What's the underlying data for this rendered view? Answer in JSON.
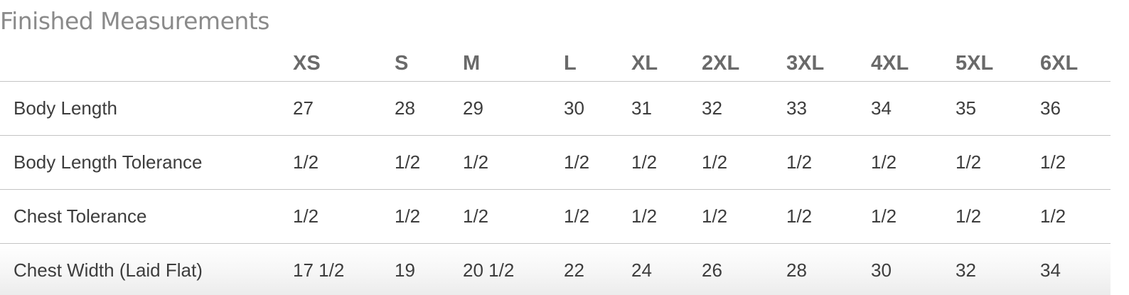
{
  "title": "Finished Measurements",
  "table": {
    "header_label": "",
    "columns": [
      "XS",
      "S",
      "M",
      "L",
      "XL",
      "2XL",
      "3XL",
      "4XL",
      "5XL",
      "6XL"
    ],
    "rows": [
      {
        "label": "Body Length",
        "values": [
          "27",
          "28",
          "29",
          "30",
          "31",
          "32",
          "33",
          "34",
          "35",
          "36"
        ]
      },
      {
        "label": "Body Length Tolerance",
        "values": [
          "1/2",
          "1/2",
          "1/2",
          "1/2",
          "1/2",
          "1/2",
          "1/2",
          "1/2",
          "1/2",
          "1/2"
        ]
      },
      {
        "label": "Chest Tolerance",
        "values": [
          "1/2",
          "1/2",
          "1/2",
          "1/2",
          "1/2",
          "1/2",
          "1/2",
          "1/2",
          "1/2",
          "1/2"
        ]
      },
      {
        "label": "Chest Width (Laid Flat)",
        "values": [
          "17 1/2",
          "19",
          "20 1/2",
          "22",
          "24",
          "26",
          "28",
          "30",
          "32",
          "34"
        ]
      }
    ]
  }
}
